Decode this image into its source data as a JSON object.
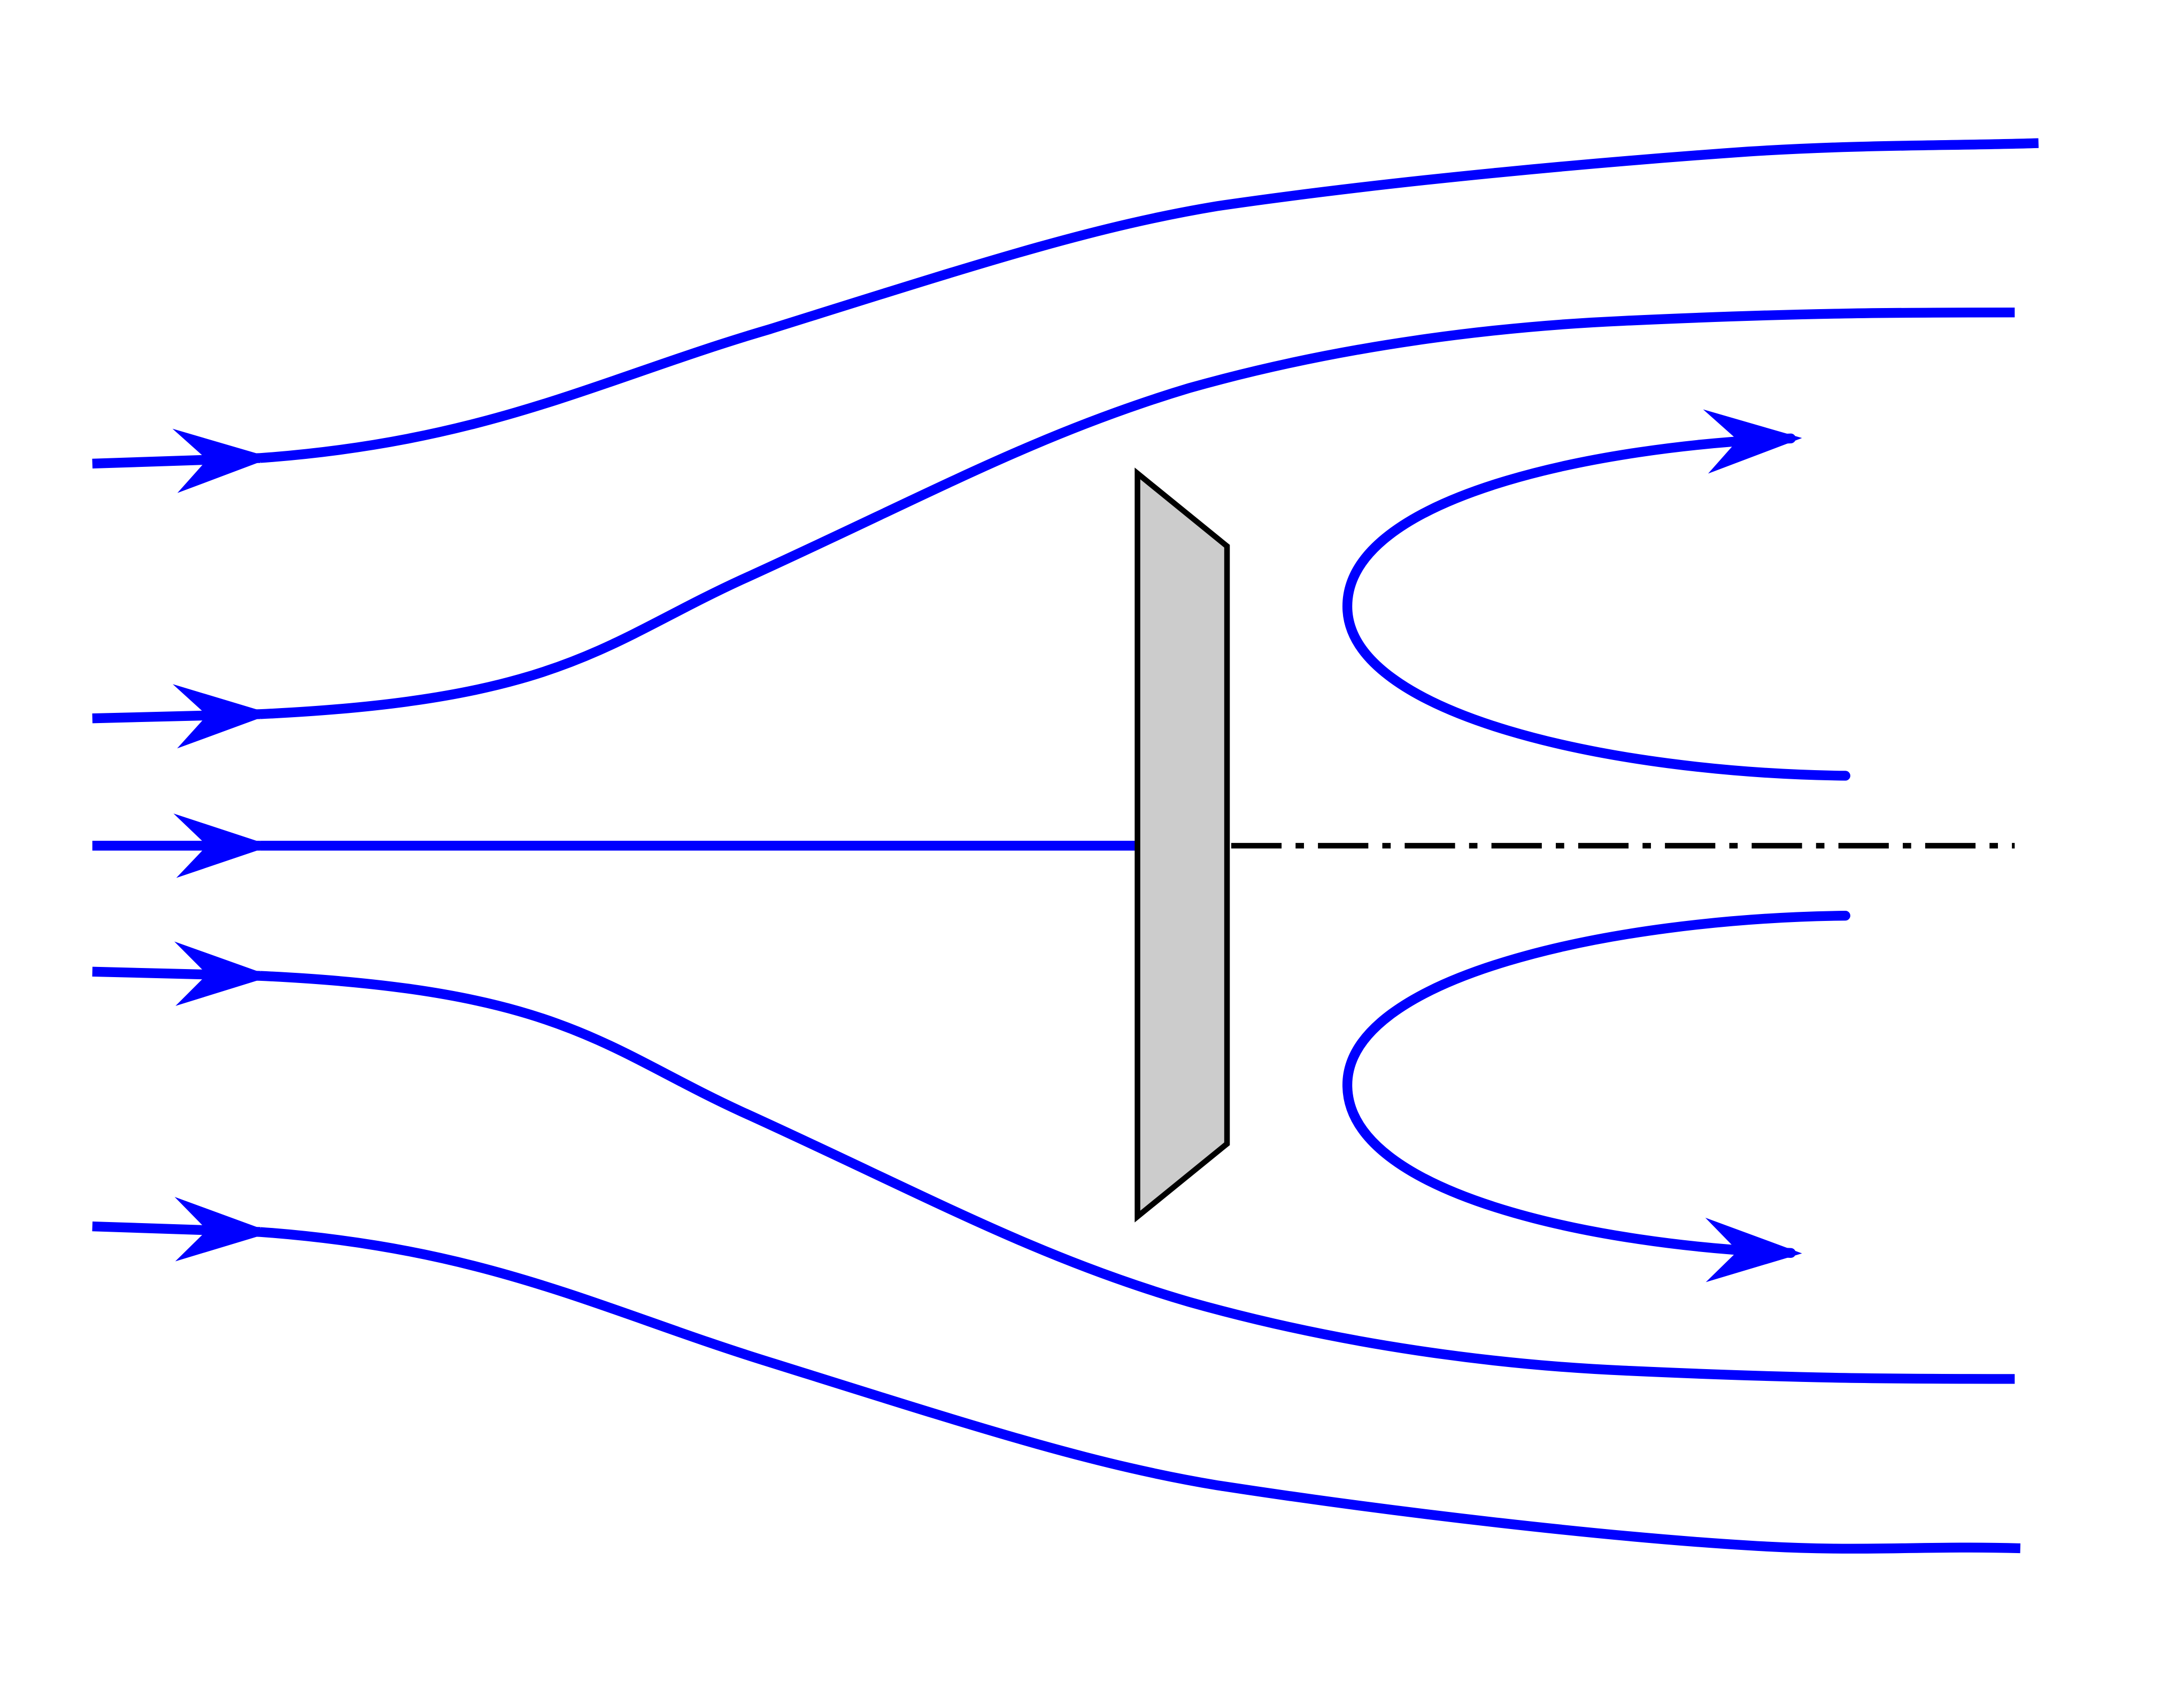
{
  "diagram": {
    "colors": {
      "background": "#ffffff",
      "streamline": "#0000ff",
      "plate_fill": "#cccccc",
      "plate_stroke": "#000000",
      "axis_line": "#000000"
    },
    "elements": {
      "streamlines": [
        "outer-top",
        "inner-top",
        "center",
        "inner-bottom",
        "outer-bottom"
      ],
      "wake_vortices": [
        "upper-recirculation",
        "lower-recirculation"
      ],
      "body": "inclined-flat-plate",
      "axis": "symmetry-axis"
    }
  }
}
